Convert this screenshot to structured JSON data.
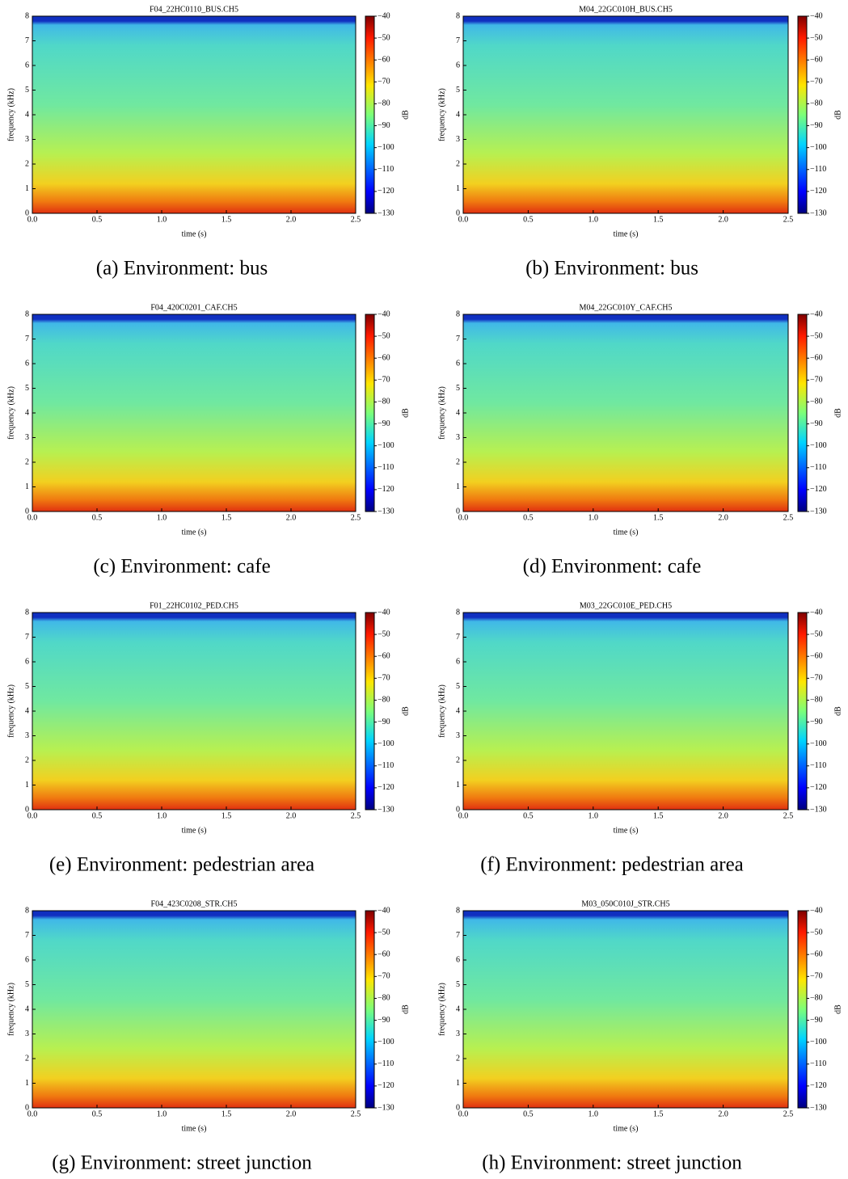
{
  "chart_data": [
    {
      "type": "spectrogram",
      "title": "F04_22HC0110_BUS.CH5",
      "caption": "(a) Environment: bus",
      "xlabel": "time (s)",
      "ylabel": "frequency (kHz)",
      "xlim": [
        0,
        2.5
      ],
      "xticks": [
        {
          "value": 0,
          "label": "0.0"
        },
        0.5,
        {
          "value": 1,
          "label": "1.0"
        },
        1.5,
        {
          "value": 2,
          "label": "2.0"
        },
        2.5
      ],
      "ylim": [
        0,
        8
      ],
      "yticks": [
        0,
        1,
        2,
        3,
        4,
        5,
        6,
        7,
        8
      ],
      "colormap": "jet",
      "colorbar_label": "dB",
      "clim": [
        -130,
        -40
      ],
      "cticks": [
        {
          "value": -40,
          "label": "−40"
        },
        {
          "value": -50,
          "label": "−50"
        },
        {
          "value": -60,
          "label": "−60"
        },
        {
          "value": -70,
          "label": "−70"
        },
        {
          "value": -80,
          "label": "−80"
        },
        {
          "value": -90,
          "label": "−90"
        },
        {
          "value": -100,
          "label": "−100"
        },
        {
          "value": -110,
          "label": "−110"
        },
        {
          "value": -120,
          "label": "−120"
        },
        {
          "value": -130,
          "label": "−130"
        }
      ]
    },
    {
      "type": "spectrogram",
      "title": "M04_22GC010H_BUS.CH5",
      "caption": "(b) Environment: bus",
      "xlabel": "time (s)",
      "ylabel": "frequency (kHz)",
      "xlim": [
        0,
        2.5
      ],
      "xticks": [
        {
          "value": 0,
          "label": "0.0"
        },
        0.5,
        {
          "value": 1,
          "label": "1.0"
        },
        1.5,
        {
          "value": 2,
          "label": "2.0"
        },
        2.5
      ],
      "ylim": [
        0,
        8
      ],
      "yticks": [
        0,
        1,
        2,
        3,
        4,
        5,
        6,
        7,
        8
      ],
      "colormap": "jet",
      "colorbar_label": "dB",
      "clim": [
        -130,
        -40
      ],
      "cticks": [
        {
          "value": -40,
          "label": "−40"
        },
        {
          "value": -50,
          "label": "−50"
        },
        {
          "value": -60,
          "label": "−60"
        },
        {
          "value": -70,
          "label": "−70"
        },
        {
          "value": -80,
          "label": "−80"
        },
        {
          "value": -90,
          "label": "−90"
        },
        {
          "value": -100,
          "label": "−100"
        },
        {
          "value": -110,
          "label": "−110"
        },
        {
          "value": -120,
          "label": "−120"
        },
        {
          "value": -130,
          "label": "−130"
        }
      ]
    },
    {
      "type": "spectrogram",
      "title": "F04_420C0201_CAF.CH5",
      "caption": "(c) Environment: cafe",
      "xlabel": "time (s)",
      "ylabel": "frequency (kHz)",
      "xlim": [
        0,
        2.5
      ],
      "xticks": [
        {
          "value": 0,
          "label": "0.0"
        },
        0.5,
        {
          "value": 1,
          "label": "1.0"
        },
        1.5,
        {
          "value": 2,
          "label": "2.0"
        },
        2.5
      ],
      "ylim": [
        0,
        8
      ],
      "yticks": [
        0,
        1,
        2,
        3,
        4,
        5,
        6,
        7,
        8
      ],
      "colormap": "jet",
      "colorbar_label": "dB",
      "clim": [
        -130,
        -40
      ],
      "cticks": [
        {
          "value": -40,
          "label": "−40"
        },
        {
          "value": -50,
          "label": "−50"
        },
        {
          "value": -60,
          "label": "−60"
        },
        {
          "value": -70,
          "label": "−70"
        },
        {
          "value": -80,
          "label": "−80"
        },
        {
          "value": -90,
          "label": "−90"
        },
        {
          "value": -100,
          "label": "−100"
        },
        {
          "value": -110,
          "label": "−110"
        },
        {
          "value": -120,
          "label": "−120"
        },
        {
          "value": -130,
          "label": "−130"
        }
      ]
    },
    {
      "type": "spectrogram",
      "title": "M04_22GC010Y_CAF.CH5",
      "caption": "(d) Environment: cafe",
      "xlabel": "time (s)",
      "ylabel": "frequency (kHz)",
      "xlim": [
        0,
        2.5
      ],
      "xticks": [
        {
          "value": 0,
          "label": "0.0"
        },
        0.5,
        {
          "value": 1,
          "label": "1.0"
        },
        1.5,
        {
          "value": 2,
          "label": "2.0"
        },
        2.5
      ],
      "ylim": [
        0,
        8
      ],
      "yticks": [
        0,
        1,
        2,
        3,
        4,
        5,
        6,
        7,
        8
      ],
      "colormap": "jet",
      "colorbar_label": "dB",
      "clim": [
        -130,
        -40
      ],
      "cticks": [
        {
          "value": -40,
          "label": "−40"
        },
        {
          "value": -50,
          "label": "−50"
        },
        {
          "value": -60,
          "label": "−60"
        },
        {
          "value": -70,
          "label": "−70"
        },
        {
          "value": -80,
          "label": "−80"
        },
        {
          "value": -90,
          "label": "−90"
        },
        {
          "value": -100,
          "label": "−100"
        },
        {
          "value": -110,
          "label": "−110"
        },
        {
          "value": -120,
          "label": "−120"
        },
        {
          "value": -130,
          "label": "−130"
        }
      ]
    },
    {
      "type": "spectrogram",
      "title": "F01_22HC0102_PED.CH5",
      "caption": "(e) Environment: pedestrian area",
      "xlabel": "time (s)",
      "ylabel": "frequency (kHz)",
      "xlim": [
        0,
        2.5
      ],
      "xticks": [
        {
          "value": 0,
          "label": "0.0"
        },
        0.5,
        {
          "value": 1,
          "label": "1.0"
        },
        1.5,
        {
          "value": 2,
          "label": "2.0"
        },
        2.5
      ],
      "ylim": [
        0,
        8
      ],
      "yticks": [
        0,
        1,
        2,
        3,
        4,
        5,
        6,
        7,
        8
      ],
      "colormap": "jet",
      "colorbar_label": "dB",
      "clim": [
        -130,
        -40
      ],
      "cticks": [
        {
          "value": -40,
          "label": "−40"
        },
        {
          "value": -50,
          "label": "−50"
        },
        {
          "value": -60,
          "label": "−60"
        },
        {
          "value": -70,
          "label": "−70"
        },
        {
          "value": -80,
          "label": "−80"
        },
        {
          "value": -90,
          "label": "−90"
        },
        {
          "value": -100,
          "label": "−100"
        },
        {
          "value": -110,
          "label": "−110"
        },
        {
          "value": -120,
          "label": "−120"
        },
        {
          "value": -130,
          "label": "−130"
        }
      ]
    },
    {
      "type": "spectrogram",
      "title": "M03_22GC010E_PED.CH5",
      "caption": "(f) Environment: pedestrian area",
      "xlabel": "time (s)",
      "ylabel": "frequency (kHz)",
      "xlim": [
        0,
        2.5
      ],
      "xticks": [
        {
          "value": 0,
          "label": "0.0"
        },
        0.5,
        {
          "value": 1,
          "label": "1.0"
        },
        1.5,
        {
          "value": 2,
          "label": "2.0"
        },
        2.5
      ],
      "ylim": [
        0,
        8
      ],
      "yticks": [
        0,
        1,
        2,
        3,
        4,
        5,
        6,
        7,
        8
      ],
      "colormap": "jet",
      "colorbar_label": "dB",
      "clim": [
        -130,
        -40
      ],
      "cticks": [
        {
          "value": -40,
          "label": "−40"
        },
        {
          "value": -50,
          "label": "−50"
        },
        {
          "value": -60,
          "label": "−60"
        },
        {
          "value": -70,
          "label": "−70"
        },
        {
          "value": -80,
          "label": "−80"
        },
        {
          "value": -90,
          "label": "−90"
        },
        {
          "value": -100,
          "label": "−100"
        },
        {
          "value": -110,
          "label": "−110"
        },
        {
          "value": -120,
          "label": "−120"
        },
        {
          "value": -130,
          "label": "−130"
        }
      ]
    },
    {
      "type": "spectrogram",
      "title": "F04_423C0208_STR.CH5",
      "caption": "(g) Environment: street junction",
      "xlabel": "time (s)",
      "ylabel": "frequency (kHz)",
      "xlim": [
        0,
        2.5
      ],
      "xticks": [
        {
          "value": 0,
          "label": "0.0"
        },
        0.5,
        {
          "value": 1,
          "label": "1.0"
        },
        1.5,
        {
          "value": 2,
          "label": "2.0"
        },
        2.5
      ],
      "ylim": [
        0,
        8
      ],
      "yticks": [
        0,
        1,
        2,
        3,
        4,
        5,
        6,
        7,
        8
      ],
      "colormap": "jet",
      "colorbar_label": "dB",
      "clim": [
        -130,
        -40
      ],
      "cticks": [
        {
          "value": -40,
          "label": "−40"
        },
        {
          "value": -50,
          "label": "−50"
        },
        {
          "value": -60,
          "label": "−60"
        },
        {
          "value": -70,
          "label": "−70"
        },
        {
          "value": -80,
          "label": "−80"
        },
        {
          "value": -90,
          "label": "−90"
        },
        {
          "value": -100,
          "label": "−100"
        },
        {
          "value": -110,
          "label": "−110"
        },
        {
          "value": -120,
          "label": "−120"
        },
        {
          "value": -130,
          "label": "−130"
        }
      ]
    },
    {
      "type": "spectrogram",
      "title": "M03_050C010J_STR.CH5",
      "caption": "(h) Environment: street junction",
      "xlabel": "time (s)",
      "ylabel": "frequency (kHz)",
      "xlim": [
        0,
        2.5
      ],
      "xticks": [
        {
          "value": 0,
          "label": "0.0"
        },
        0.5,
        {
          "value": 1,
          "label": "1.0"
        },
        1.5,
        {
          "value": 2,
          "label": "2.0"
        },
        2.5
      ],
      "ylim": [
        0,
        8
      ],
      "yticks": [
        0,
        1,
        2,
        3,
        4,
        5,
        6,
        7,
        8
      ],
      "colormap": "jet",
      "colorbar_label": "dB",
      "clim": [
        -130,
        -40
      ],
      "cticks": [
        {
          "value": -40,
          "label": "−40"
        },
        {
          "value": -50,
          "label": "−50"
        },
        {
          "value": -60,
          "label": "−60"
        },
        {
          "value": -70,
          "label": "−70"
        },
        {
          "value": -80,
          "label": "−80"
        },
        {
          "value": -90,
          "label": "−90"
        },
        {
          "value": -100,
          "label": "−100"
        },
        {
          "value": -110,
          "label": "−110"
        },
        {
          "value": -120,
          "label": "−120"
        },
        {
          "value": -130,
          "label": "−130"
        }
      ]
    }
  ]
}
